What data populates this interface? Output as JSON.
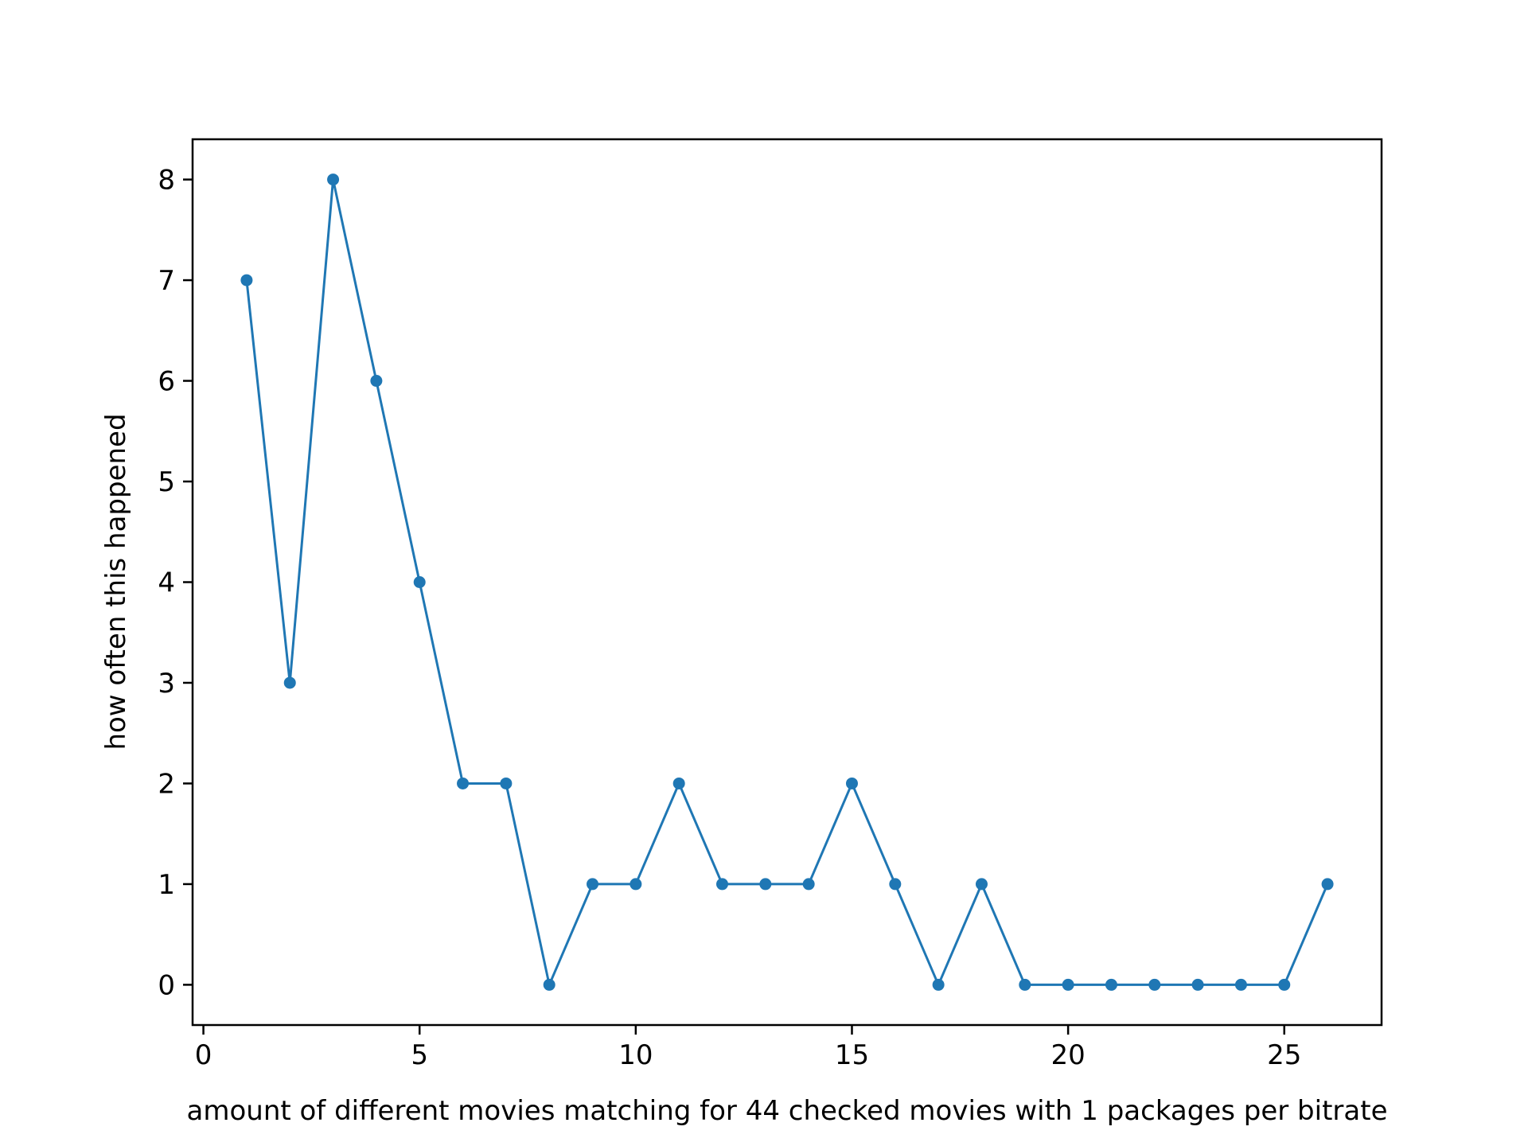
{
  "chart_data": {
    "type": "line",
    "title": "",
    "xlabel": "amount of different movies matching for 44 checked movies with 1 packages per bitrate",
    "ylabel": "how often this happened",
    "x": [
      1,
      2,
      3,
      4,
      5,
      6,
      7,
      8,
      9,
      10,
      11,
      12,
      13,
      14,
      15,
      16,
      17,
      18,
      19,
      20,
      21,
      22,
      23,
      24,
      25,
      26
    ],
    "series": [
      {
        "values": [
          7,
          3,
          8,
          6,
          4,
          2,
          2,
          0,
          1,
          1,
          2,
          1,
          1,
          1,
          2,
          1,
          0,
          1,
          0,
          0,
          0,
          0,
          0,
          0,
          0,
          1
        ],
        "color": "#1f77b4",
        "marker": "circle"
      }
    ],
    "xlim": [
      -0.25,
      27.25
    ],
    "ylim": [
      -0.4,
      8.4
    ],
    "xticks": [
      0,
      5,
      10,
      15,
      20,
      25
    ],
    "yticks": [
      0,
      1,
      2,
      3,
      4,
      5,
      6,
      7,
      8
    ],
    "grid": false,
    "legend": "none"
  }
}
